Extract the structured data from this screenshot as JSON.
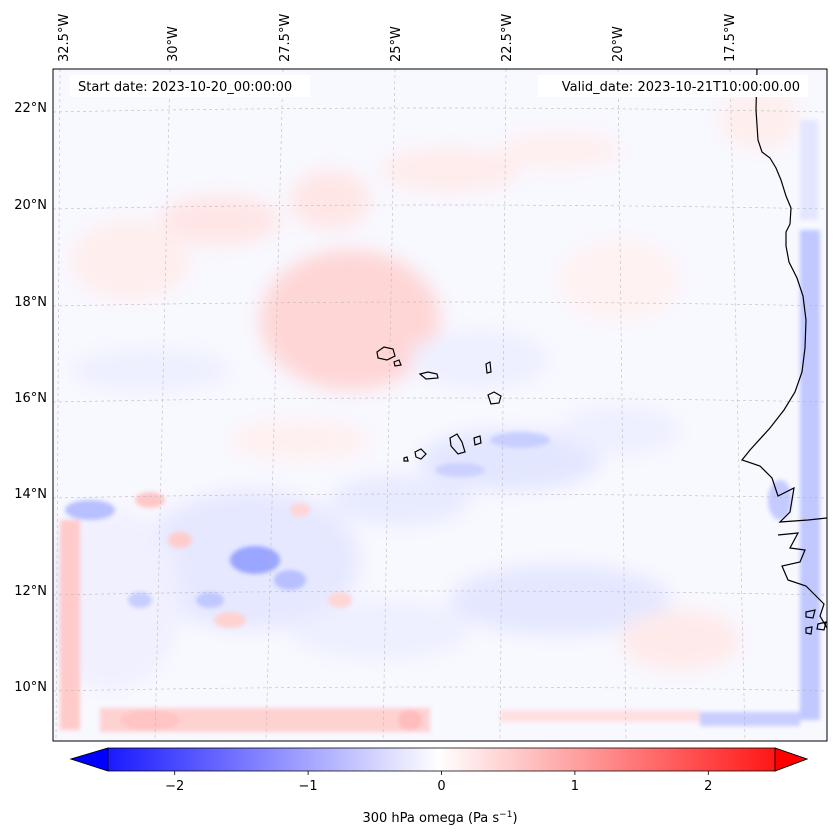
{
  "map": {
    "start_label": "Start date: 2023-10-20_00:00:00",
    "valid_label": "Valid_date: 2023-10-21T10:00:00.00",
    "lon_labels": [
      "32.5°W",
      "30°W",
      "27.5°W",
      "25°W",
      "22.5°W",
      "20°W",
      "17.5°W"
    ],
    "lat_labels": [
      "22°N",
      "20°N",
      "18°N",
      "16°N",
      "14°N",
      "12°N",
      "10°N"
    ],
    "gridlines": true,
    "field": "300 hPa omega"
  },
  "colorbar": {
    "tick_labels": [
      "−2",
      "−1",
      "0",
      "1",
      "2"
    ],
    "tick_values": [
      -2,
      -1,
      0,
      1,
      2
    ],
    "range": [
      -2.5,
      2.5
    ],
    "label_main": "300 hPa omega (Pa s",
    "label_exp": "−1",
    "label_close": ")",
    "color_low": "#0000ff",
    "color_mid": "#ffffff",
    "color_high": "#ff0000"
  }
}
